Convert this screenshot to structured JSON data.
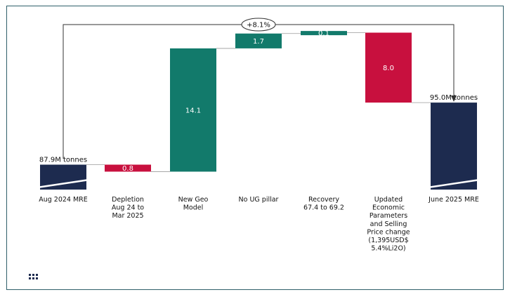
{
  "chart_data": {
    "type": "bar",
    "subtype": "waterfall",
    "categories": [
      "Aug 2024 MRE",
      "Depletion Aug 24 to Mar 2025",
      "New Geo Model",
      "No UG pillar",
      "Recovery 67.4 to 69.2",
      "Updated Economic Parameters and Selling Price change (1,395USD$ 5.4%Li2O)",
      "June 2025 MRE"
    ],
    "category_lines": [
      [
        "Aug 2024 MRE"
      ],
      [
        "Depletion",
        "Aug 24 to",
        "Mar 2025"
      ],
      [
        "New Geo",
        "Model"
      ],
      [
        "No UG pillar"
      ],
      [
        "Recovery",
        "67.4 to 69.2"
      ],
      [
        "Updated",
        "Economic",
        "Parameters",
        "and Selling",
        "Price change",
        "(1,395USD$",
        "5.4%Li2O)"
      ],
      [
        "June 2025 MRE"
      ]
    ],
    "steps": [
      {
        "category": "Aug 2024 MRE",
        "kind": "total",
        "value": 87.9,
        "label": "87.9M tonnes"
      },
      {
        "category": "Depletion Aug 24 to Mar 2025",
        "kind": "decrease",
        "value": -0.8,
        "label": "0.8"
      },
      {
        "category": "New Geo Model",
        "kind": "increase",
        "value": 14.1,
        "label": "14.1"
      },
      {
        "category": "No UG pillar",
        "kind": "increase",
        "value": 1.7,
        "label": "1.7"
      },
      {
        "category": "Recovery 67.4 to 69.2",
        "kind": "increase",
        "value": 0.1,
        "label": "0.1"
      },
      {
        "category": "Updated Economic Parameters and Selling Price change (1,395USD$ 5.4%Li2O)",
        "kind": "decrease",
        "value": -8.0,
        "label": "8.0"
      },
      {
        "category": "June 2025 MRE",
        "kind": "total",
        "value": 95.0,
        "label": "95.0M tonnes"
      }
    ],
    "change_annotation": "+8.1%",
    "axis_break": true,
    "colors": {
      "total": "#1d2b4f",
      "increase": "#127a6b",
      "decrease": "#c8103e",
      "connector": "#999999",
      "arrow": "#333333"
    }
  }
}
